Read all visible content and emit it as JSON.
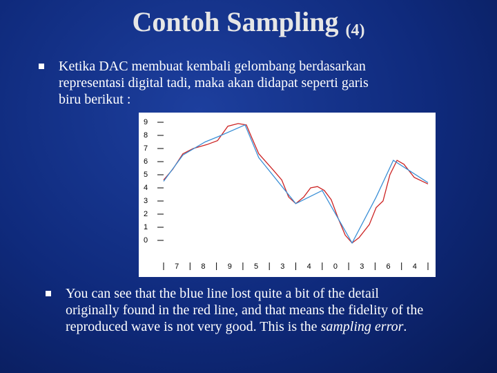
{
  "title": "Contoh Sampling",
  "title_suffix": "(4)",
  "bullets": [
    {
      "parts": [
        "Ketika DAC membuat kembali gelombang berdasarkan representasi digital tadi, maka akan didapat seperti garis biru berikut :"
      ]
    },
    {
      "parts": [
        "You can see that the blue line lost quite a bit of the detail originally found in the red line, and that means the fidelity of the reproduced wave is not very good. This is the ",
        "sampling error",
        "."
      ]
    }
  ],
  "chart_data": {
    "type": "line",
    "xlim": [
      0,
      10
    ],
    "ylim": [
      0,
      9
    ],
    "yticks": [
      0,
      1,
      2,
      3,
      4,
      5,
      6,
      7,
      8,
      9
    ],
    "xticks": [
      {
        "value": 0.5,
        "label": "7"
      },
      {
        "value": 1.5,
        "label": "8"
      },
      {
        "value": 2.5,
        "label": "9"
      },
      {
        "value": 3.5,
        "label": "5"
      },
      {
        "value": 4.5,
        "label": "3"
      },
      {
        "value": 5.5,
        "label": "4"
      },
      {
        "value": 6.5,
        "label": "0"
      },
      {
        "value": 7.5,
        "label": "3"
      },
      {
        "value": 8.5,
        "label": "6"
      },
      {
        "value": 9.5,
        "label": "4"
      }
    ],
    "series": [
      {
        "color": "#cc2222",
        "x": [
          0,
          0.34,
          0.73,
          1.12,
          1.64,
          2.04,
          2.43,
          2.82,
          3.13,
          3.34,
          3.6,
          4.13,
          4.47,
          4.73,
          5,
          5.3,
          5.56,
          5.82,
          6.08,
          6.34,
          6.6,
          6.87,
          7.13,
          7.39,
          7.78,
          8.04,
          8.3,
          8.56,
          8.83,
          9.09,
          9.48,
          10
        ],
        "values": [
          4.6,
          5.4,
          6.6,
          7.0,
          7.3,
          7.6,
          8.7,
          8.9,
          8.8,
          7.8,
          6.6,
          5.4,
          4.6,
          3.3,
          2.8,
          3.3,
          4.0,
          4.1,
          3.8,
          3.1,
          1.7,
          0.4,
          -0.2,
          0.2,
          1.2,
          2.5,
          3.0,
          5.0,
          6.1,
          5.8,
          4.8,
          4.3
        ]
      },
      {
        "color": "#3a8fd6",
        "x": [
          0,
          0.73,
          1.57,
          2.06,
          3.08,
          3.6,
          5,
          6,
          7.13,
          8.04,
          8.69,
          10
        ],
        "values": [
          4.5,
          6.5,
          7.5,
          7.9,
          8.8,
          6.3,
          2.8,
          3.8,
          -0.2,
          3.3,
          6.1,
          4.4
        ]
      }
    ]
  }
}
